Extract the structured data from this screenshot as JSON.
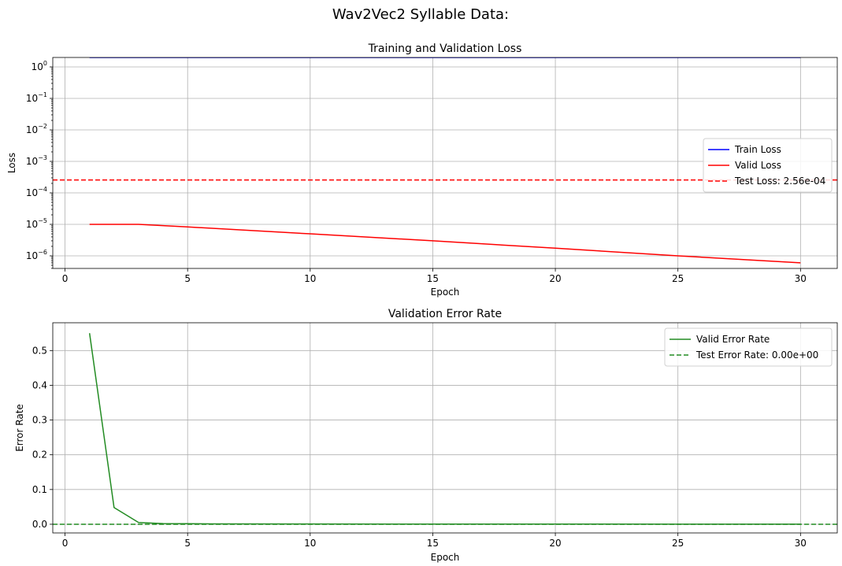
{
  "figure": {
    "title": "Wav2Vec2 Syllable Data:"
  },
  "chart_data": [
    {
      "type": "line",
      "title": "Training and Validation Loss",
      "xlabel": "Epoch",
      "ylabel": "Loss",
      "yscale": "log",
      "xlim": [
        -0.5,
        31.5
      ],
      "ylim_exponent": [
        -6.4,
        0.3
      ],
      "xticks": [
        0,
        5,
        10,
        15,
        20,
        25,
        30
      ],
      "yticks_exponent": [
        -6,
        -5,
        -4,
        -3,
        -2,
        -1,
        0
      ],
      "tick_base": "10",
      "grid": true,
      "legend": {
        "placement": "right"
      },
      "x": [
        1,
        3,
        5,
        10,
        15,
        20,
        25,
        30
      ],
      "series": [
        {
          "name": "Train Loss",
          "color": "#0000ff",
          "style": "solid",
          "values": [
            2.0,
            2.0,
            2.0,
            2.0,
            2.0,
            2.0,
            2.0,
            2.0
          ]
        },
        {
          "name": "Valid Loss",
          "color": "#ff0000",
          "style": "solid",
          "values": [
            1e-05,
            1e-05,
            8.3e-06,
            5e-06,
            3e-06,
            1.75e-06,
            1e-06,
            6e-07
          ]
        }
      ],
      "hlines": [
        {
          "name": "Test Loss: 2.56e-04",
          "value": 0.000256,
          "color": "#ff0000",
          "style": "dashed"
        }
      ]
    },
    {
      "type": "line",
      "title": "Validation Error Rate",
      "xlabel": "Epoch",
      "ylabel": "Error Rate",
      "yscale": "linear",
      "xlim": [
        -0.5,
        31.5
      ],
      "ylim": [
        -0.025,
        0.58
      ],
      "xticks": [
        0,
        5,
        10,
        15,
        20,
        25,
        30
      ],
      "yticks": [
        0.0,
        0.1,
        0.2,
        0.3,
        0.4,
        0.5
      ],
      "ytick_labels": [
        "0.0",
        "0.1",
        "0.2",
        "0.3",
        "0.4",
        "0.5"
      ],
      "grid": true,
      "legend": {
        "placement": "top-right"
      },
      "x": [
        1,
        2,
        3,
        4,
        5,
        6,
        10,
        15,
        20,
        25,
        30
      ],
      "series": [
        {
          "name": "Valid Error Rate",
          "color": "#228b22",
          "style": "solid",
          "values": [
            0.55,
            0.048,
            0.005,
            0.002,
            0.0015,
            0.001,
            0.0008,
            0.0005,
            0.0004,
            0.0003,
            0.0002
          ]
        }
      ],
      "hlines": [
        {
          "name": "Test Error Rate: 0.00e+00",
          "value": 0.0,
          "color": "#228b22",
          "style": "dashed"
        }
      ]
    }
  ]
}
